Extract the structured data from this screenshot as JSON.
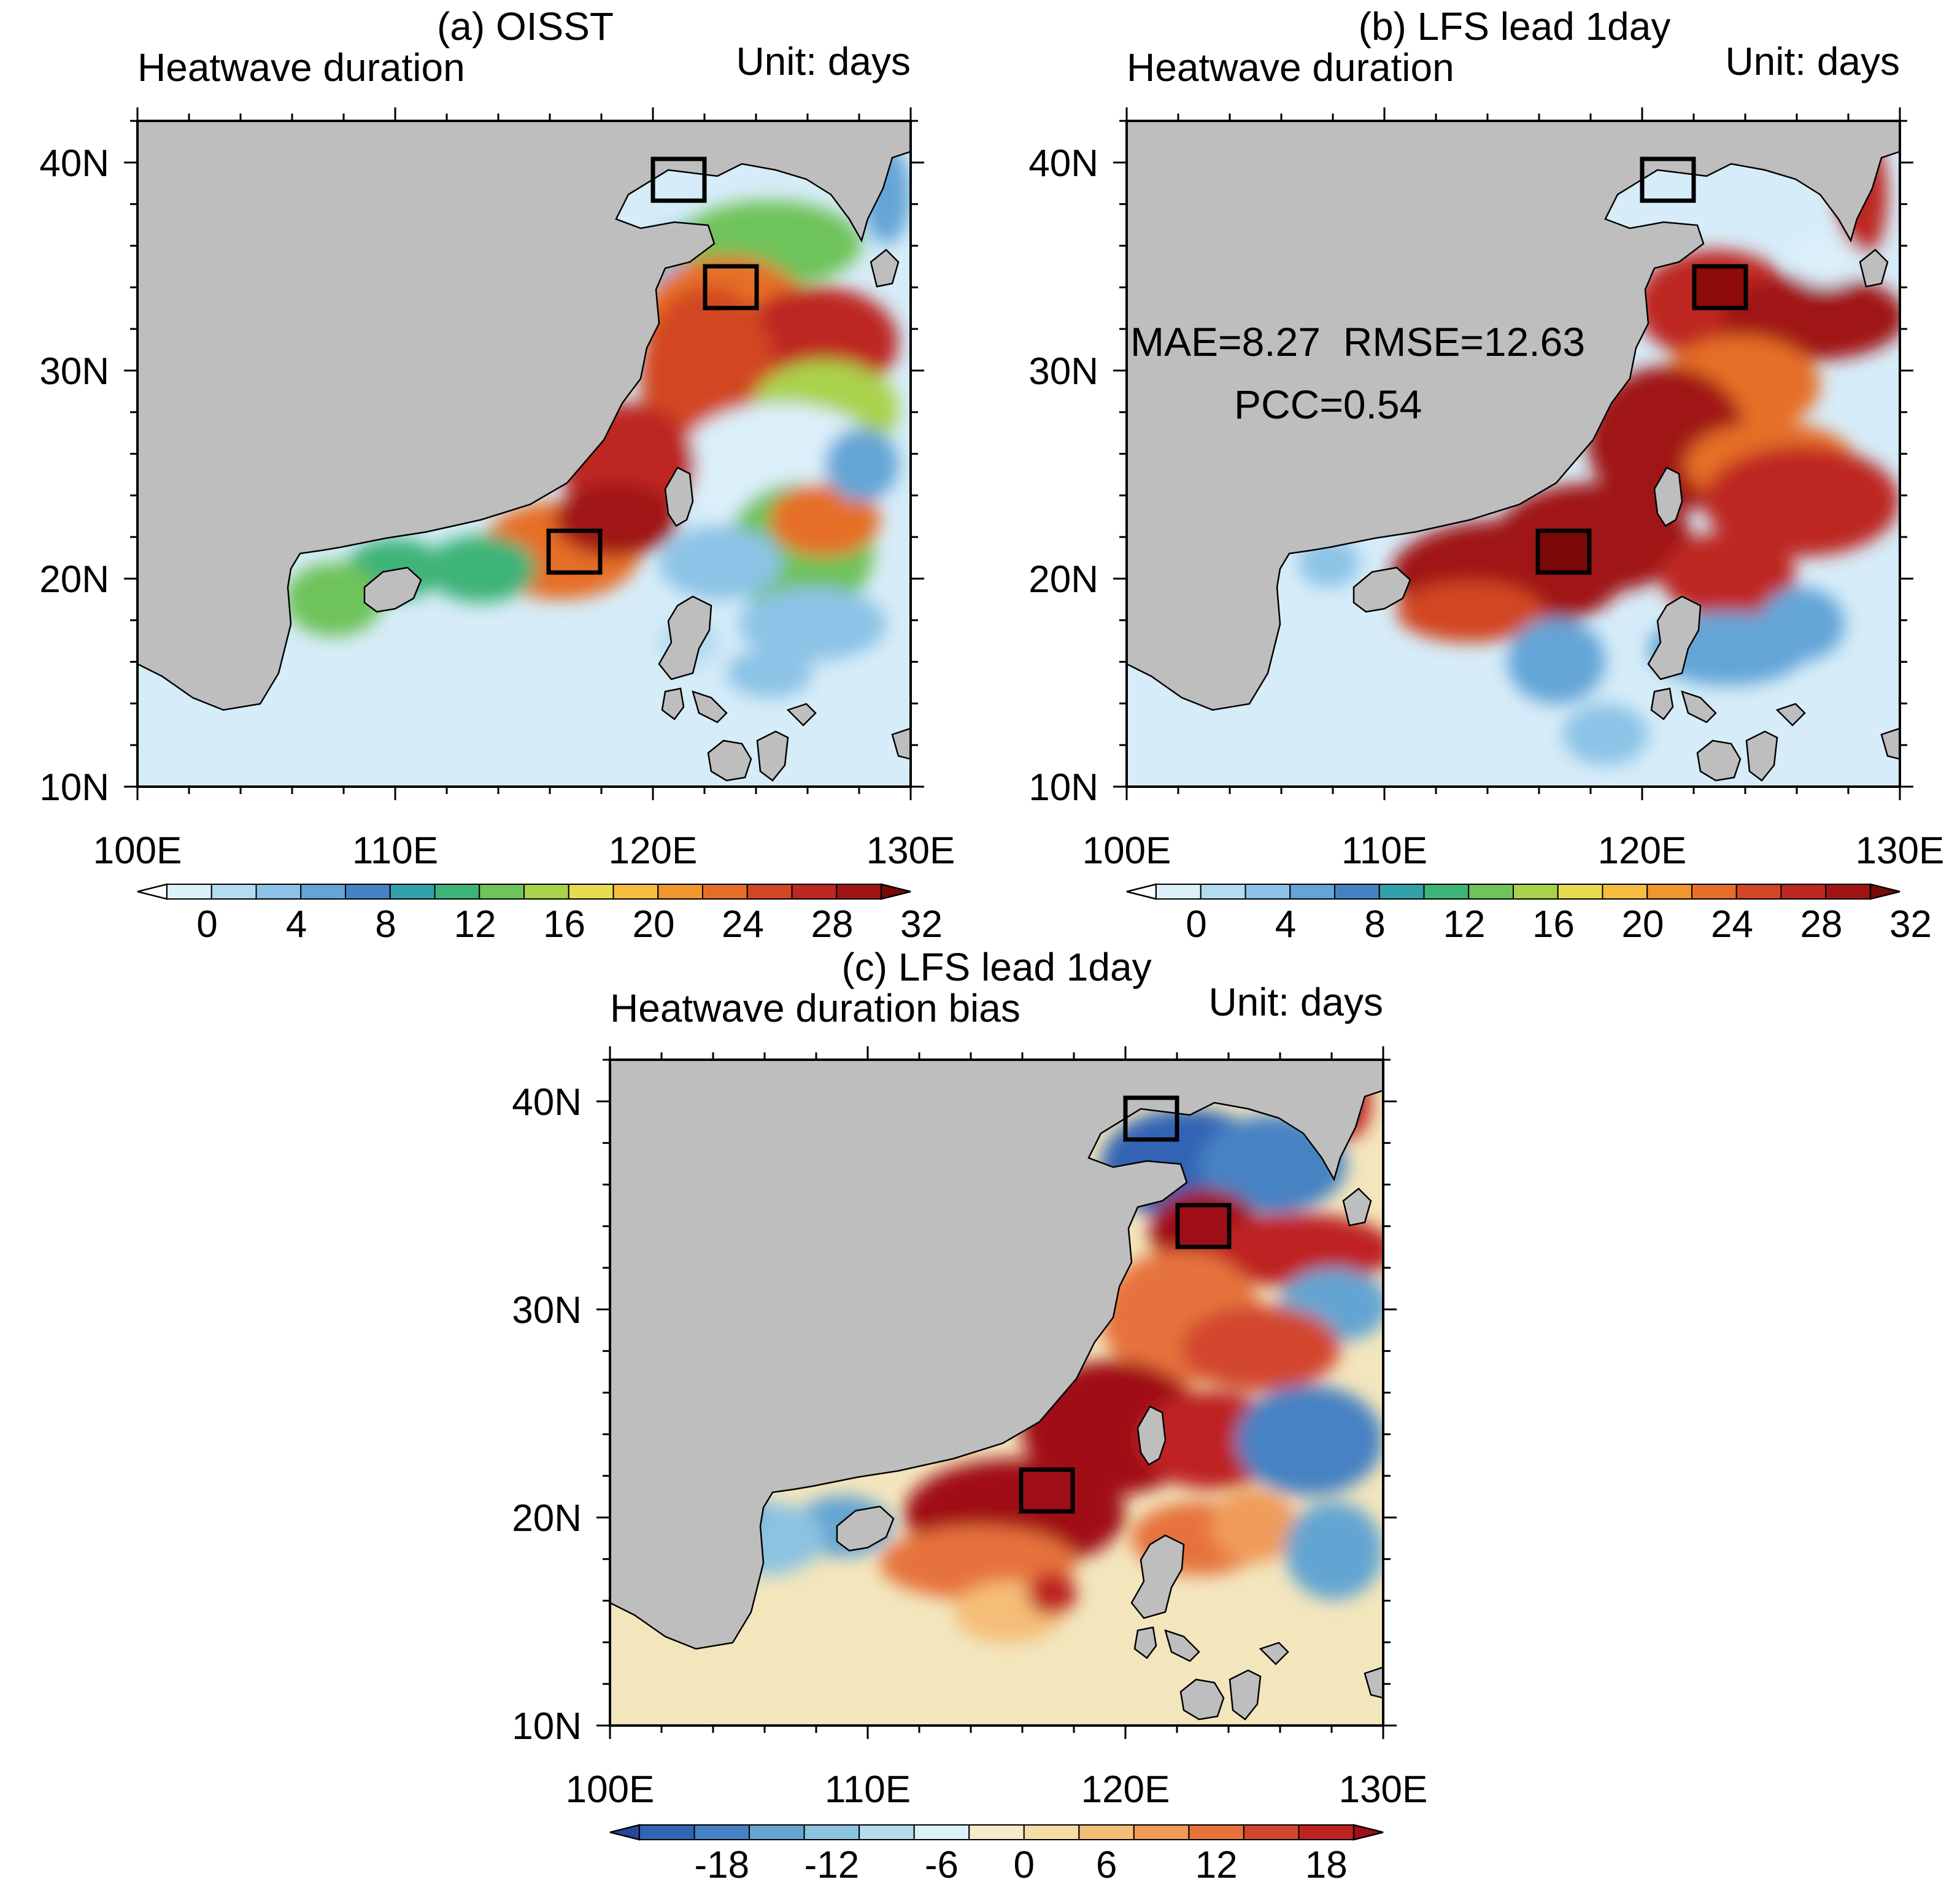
{
  "panels": {
    "a": {
      "title": "(a) OISST",
      "left": "Heatwave duration",
      "right": "Unit: days"
    },
    "b": {
      "title": "(b) LFS lead 1day",
      "left": "Heatwave duration",
      "right": "Unit: days",
      "stats_line1": "MAE=8.27  RMSE=12.63",
      "stats_line2": "PCC=0.54"
    },
    "c": {
      "title": "(c) LFS lead 1day",
      "left": "Heatwave duration bias",
      "right": "Unit: days"
    }
  },
  "axes": {
    "lon_labels": [
      "100E",
      "110E",
      "120E",
      "130E"
    ],
    "lat_labels": [
      "40N",
      "30N",
      "20N",
      "10N"
    ],
    "lon_range": [
      100,
      130
    ],
    "lat_range": [
      10,
      42
    ]
  },
  "colorbars": {
    "duration": {
      "labels": [
        "0",
        "4",
        "8",
        "12",
        "16",
        "20",
        "24",
        "28",
        "32"
      ],
      "colors": [
        "#ffffff",
        "#dcf0fa",
        "#b4dcf0",
        "#8cc3e6",
        "#64a5d7",
        "#4682c3",
        "#32a0aa",
        "#3cb478",
        "#6ec35a",
        "#aad24b",
        "#e6dc50",
        "#f5be41",
        "#f0962d",
        "#e66e28",
        "#d24623",
        "#be2823",
        "#a01414",
        "#780a0a"
      ]
    },
    "bias": {
      "labels": [
        "-18",
        "-12",
        "-6",
        "0",
        "6",
        "12",
        "18"
      ],
      "colors": [
        "#2846a0",
        "#3264b4",
        "#4682c3",
        "#64a5d2",
        "#8cc3e1",
        "#b4dcee",
        "#dcf0f8",
        "#f5ebc8",
        "#f5dca5",
        "#f5be78",
        "#f09b5a",
        "#e6733c",
        "#d2462d",
        "#be2323",
        "#a00f19"
      ]
    }
  },
  "colors": {
    "land": "#bebebe",
    "ocean_low": "#d6ecf8",
    "bias_neutral": "#f3e6bd",
    "box": "#000000"
  }
}
